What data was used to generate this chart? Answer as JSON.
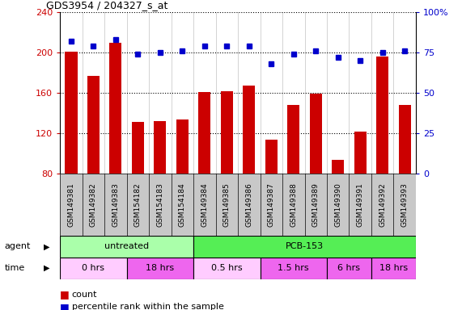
{
  "title": "GDS3954 / 204327_s_at",
  "samples": [
    "GSM149381",
    "GSM149382",
    "GSM149383",
    "GSM154182",
    "GSM154183",
    "GSM154184",
    "GSM149384",
    "GSM149385",
    "GSM149386",
    "GSM149387",
    "GSM149388",
    "GSM149389",
    "GSM149390",
    "GSM149391",
    "GSM149392",
    "GSM149393"
  ],
  "counts": [
    201,
    177,
    210,
    131,
    132,
    134,
    161,
    162,
    167,
    114,
    148,
    159,
    94,
    122,
    196,
    148
  ],
  "percentiles": [
    82,
    79,
    83,
    74,
    75,
    76,
    79,
    79,
    79,
    68,
    74,
    76,
    72,
    70,
    75,
    76
  ],
  "ylim_left": [
    80,
    240
  ],
  "ylim_right": [
    0,
    100
  ],
  "yticks_left": [
    80,
    120,
    160,
    200,
    240
  ],
  "yticks_right": [
    0,
    25,
    50,
    75,
    100
  ],
  "bar_color": "#CC0000",
  "dot_color": "#0000CC",
  "sample_bg_color": "#C8C8C8",
  "agent_untreated_color": "#AAFFAA",
  "agent_pcb_color": "#55EE55",
  "time_light_color": "#FFCCFF",
  "time_dark_color": "#EE66EE",
  "grid_color": "#000000",
  "legend_count_color": "#CC0000",
  "legend_dot_color": "#0000CC",
  "time_bands": [
    {
      "label": "0 hrs",
      "start": 0,
      "end": 3,
      "light": true
    },
    {
      "label": "18 hrs",
      "start": 3,
      "end": 6,
      "light": false
    },
    {
      "label": "0.5 hrs",
      "start": 6,
      "end": 9,
      "light": true
    },
    {
      "label": "1.5 hrs",
      "start": 9,
      "end": 12,
      "light": false
    },
    {
      "label": "6 hrs",
      "start": 12,
      "end": 14,
      "light": false
    },
    {
      "label": "18 hrs",
      "start": 14,
      "end": 16,
      "light": false
    }
  ]
}
